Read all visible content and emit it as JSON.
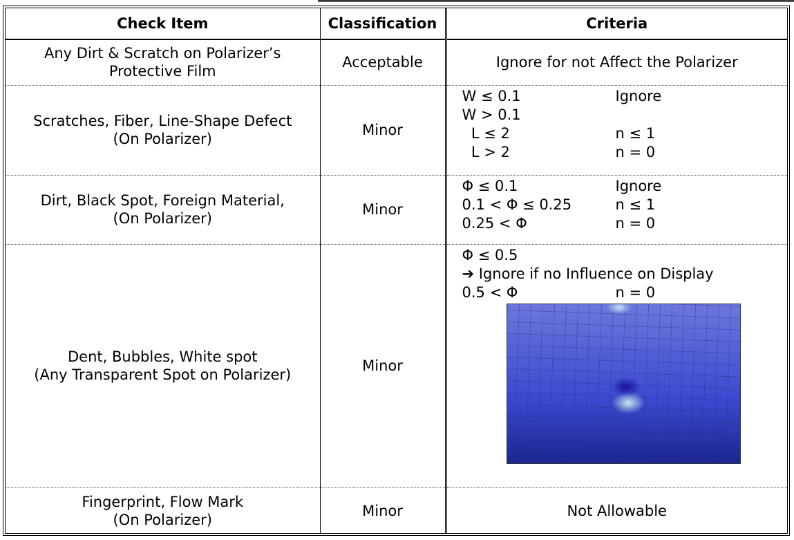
{
  "table": {
    "header": [
      "Check Item",
      "Classification",
      "Criteria"
    ],
    "rows": [
      {
        "item": [
          "Any Dirt & Scratch on Polarizer’s",
          "Protective Film"
        ],
        "classification": "Acceptable",
        "criteria": "Ignore for not Affect the Polarizer"
      },
      {
        "item": [
          "Scratches, Fiber, Line-Shape Defect",
          "(On Polarizer)"
        ],
        "classification": "Minor",
        "criteria_lines": [
          [
            "W ≤ 0.1",
            "Ignore"
          ],
          [
            "W > 0.1"
          ],
          [
            "  L ≤ 2",
            "n ≤ 1"
          ],
          [
            "  L > 2",
            "n = 0"
          ]
        ]
      },
      {
        "item": [
          "Dirt, Black Spot, Foreign Material,",
          "(On Polarizer)"
        ],
        "classification": "Minor",
        "criteria_lines": [
          [
            "Φ ≤ 0.1",
            "Ignore"
          ],
          [
            "0.1 < Φ ≤ 0.25",
            "n ≤ 1"
          ],
          [
            "0.25 < Φ",
            "n = 0"
          ]
        ]
      },
      {
        "item": [
          "Dent, Bubbles, White spot",
          "(Any Transparent Spot on Polarizer)"
        ],
        "classification": "Minor",
        "criteria_lines": [
          [
            "Φ ≤ 0.5"
          ],
          [
            "➔ Ignore if no Influence on Display"
          ],
          [
            "0.5 < Φ",
            "n = 0"
          ]
        ],
        "photo": true
      },
      {
        "item": [
          "Fingerprint, Flow Mark",
          "(On Polarizer)"
        ],
        "classification": "Minor",
        "criteria": "Not Allowable"
      }
    ]
  }
}
